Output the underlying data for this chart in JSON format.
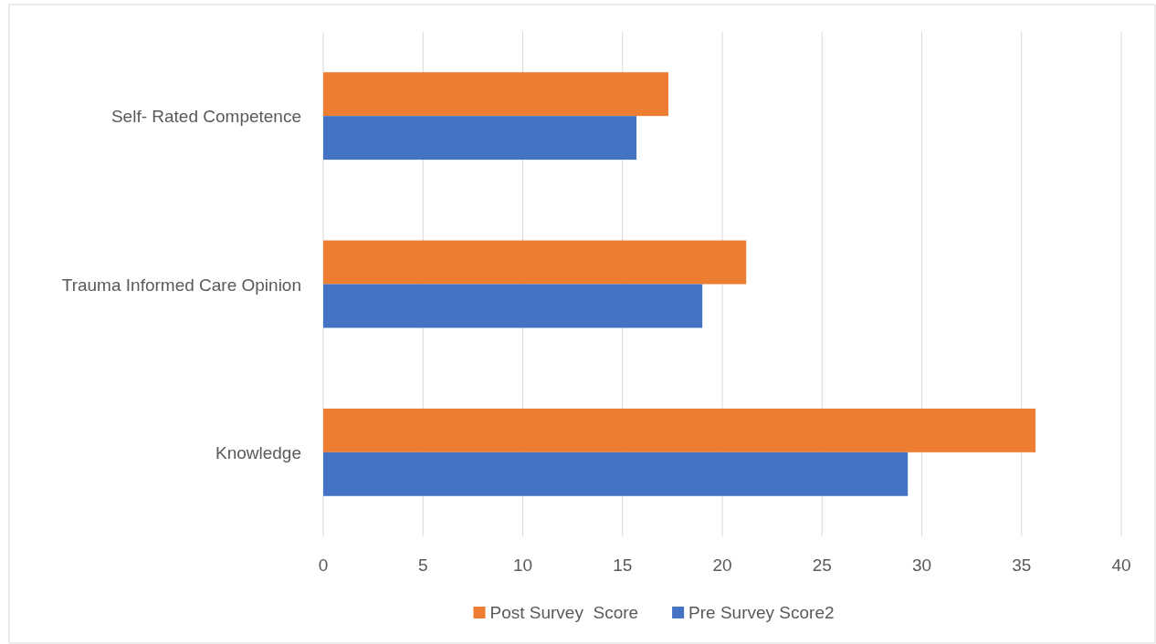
{
  "chart_data": {
    "type": "bar",
    "orientation": "horizontal",
    "categories": [
      "Self- Rated Competence",
      "Trauma Informed Care Opinion",
      "Knowledge"
    ],
    "series": [
      {
        "name": "Post Survey  Score",
        "color": "#ed7d31",
        "values": [
          17.3,
          21.2,
          35.7
        ]
      },
      {
        "name": "Pre Survey Score2",
        "color": "#4472c4",
        "values": [
          15.7,
          19.0,
          29.3
        ]
      }
    ],
    "xlim": [
      0,
      40
    ],
    "xticks": [
      0,
      5,
      10,
      15,
      20,
      25,
      30,
      35,
      40
    ],
    "grid": "x",
    "legend": "bottom"
  }
}
